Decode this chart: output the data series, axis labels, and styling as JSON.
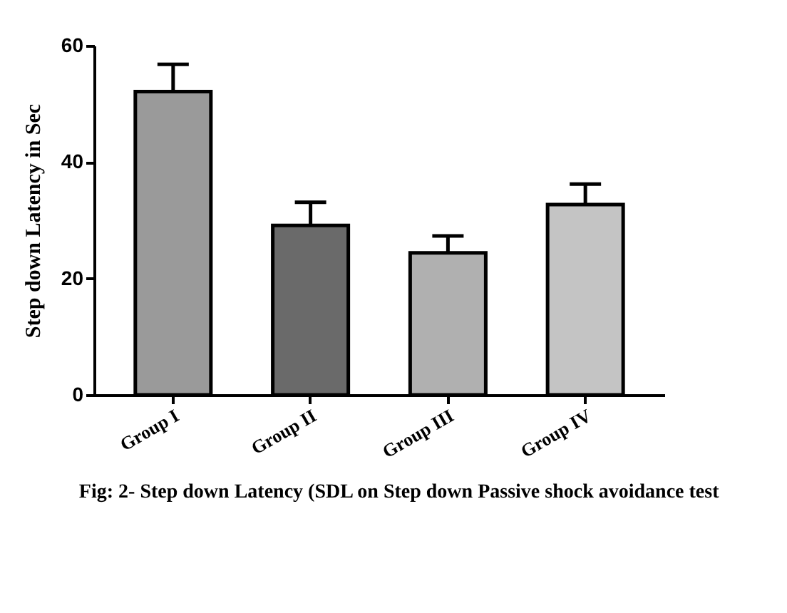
{
  "chart_data": {
    "type": "bar",
    "title": "Fig: 2- Step down Latency (SDL on Step down Passive shock avoidance test",
    "ylabel": "Step down Latency in Sec",
    "categories": [
      "Group I",
      "Group II",
      "Group III",
      "Group IV"
    ],
    "values": [
      52.1,
      29.1,
      24.4,
      32.7
    ],
    "errors": [
      4.7,
      4.0,
      2.9,
      3.5
    ],
    "colors": [
      "#9a9a9a",
      "#6a6a6a",
      "#b0b0b0",
      "#c4c4c4"
    ],
    "ylim": [
      0,
      60
    ],
    "yticks": [
      0,
      20,
      40,
      60
    ],
    "grid": false
  }
}
